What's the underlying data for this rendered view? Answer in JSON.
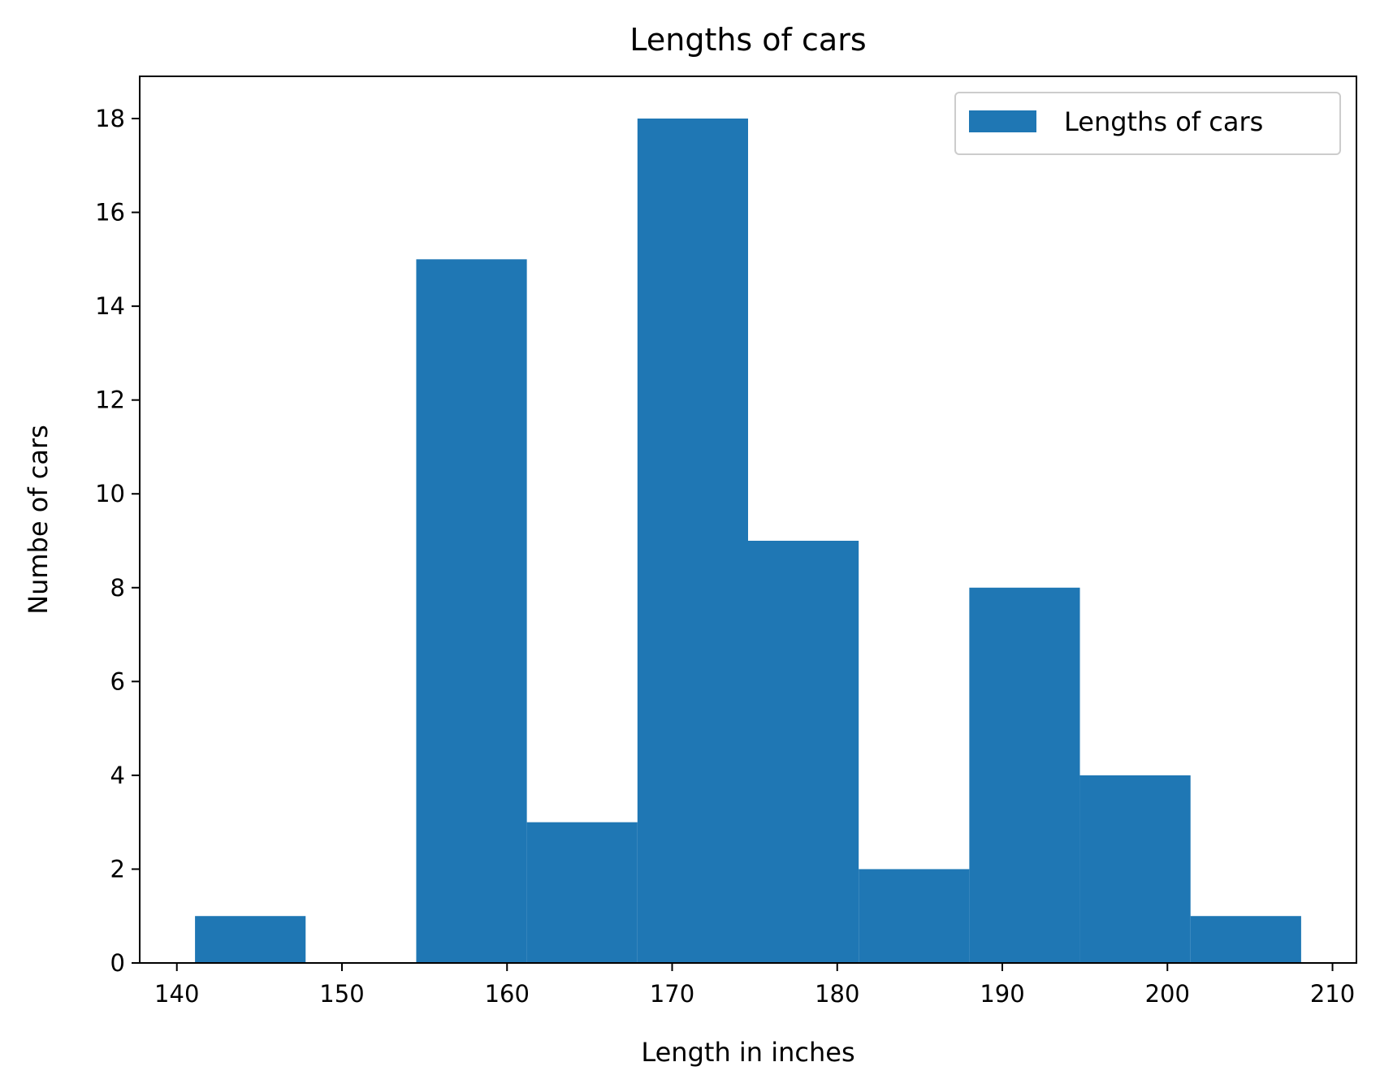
{
  "chart_data": {
    "type": "bar",
    "title": "Lengths of cars",
    "xlabel": "Length in inches",
    "ylabel": "Numbe of cars",
    "bins": [
      {
        "x0": 141.1,
        "x1": 147.8,
        "count": 1
      },
      {
        "x0": 147.8,
        "x1": 154.5,
        "count": 0
      },
      {
        "x0": 154.5,
        "x1": 161.2,
        "count": 15
      },
      {
        "x0": 161.2,
        "x1": 167.9,
        "count": 3
      },
      {
        "x0": 167.9,
        "x1": 174.6,
        "count": 18
      },
      {
        "x0": 174.6,
        "x1": 181.3,
        "count": 9
      },
      {
        "x0": 181.3,
        "x1": 188.0,
        "count": 2
      },
      {
        "x0": 188.0,
        "x1": 194.7,
        "count": 8
      },
      {
        "x0": 194.7,
        "x1": 201.4,
        "count": 4
      },
      {
        "x0": 201.4,
        "x1": 208.1,
        "count": 1
      }
    ],
    "xlim": [
      137.75,
      211.45
    ],
    "ylim": [
      0,
      18.9
    ],
    "xticks": [
      140,
      150,
      160,
      170,
      180,
      190,
      200,
      210
    ],
    "yticks": [
      0,
      2,
      4,
      6,
      8,
      10,
      12,
      14,
      16,
      18
    ],
    "series": [
      {
        "name": "Lengths of cars",
        "color": "#1f77b4"
      }
    ],
    "legend": "top-right",
    "grid": false
  }
}
